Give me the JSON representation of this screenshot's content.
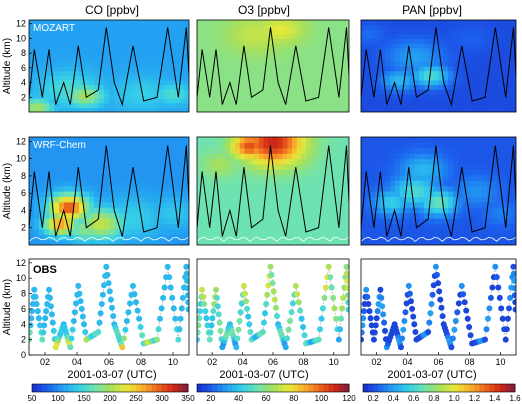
{
  "figure": {
    "column_titles": [
      "CO [ppbv]",
      "O3 [ppbv]",
      "PAN [ppbv]"
    ],
    "row_labels": [
      "MOZART",
      "WRF-Chem",
      "OBS"
    ],
    "y_axis_label": "Altitude (km)",
    "y_ticks": [
      "2",
      "4",
      "6",
      "8",
      "10",
      "12"
    ],
    "obs_y_ticks": [
      "0",
      "2",
      "4",
      "6",
      "8",
      "10",
      "12"
    ],
    "x_ticks": [
      "02",
      "04",
      "06",
      "08",
      "10"
    ],
    "x_axis_label": "2001-03-07 (UTC)",
    "colors": {
      "colormap": [
        "#1a2cc9",
        "#1c60ee",
        "#23a1f2",
        "#35d0e8",
        "#6de2b2",
        "#a6e05b",
        "#e6e83a",
        "#f7b52c",
        "#ee6a1e",
        "#d12a14",
        "#7d1b3f"
      ]
    }
  },
  "chart_data": [
    {
      "type": "heatmap",
      "title": "CO [ppbv]",
      "colorbar_ticks": [
        "50",
        "100",
        "150",
        "200",
        "250",
        "300",
        "350"
      ],
      "clim": [
        50,
        350
      ],
      "ylim": [
        0,
        12.5
      ],
      "xlim": [
        "2001-03-07 01:00",
        "2001-03-07 11:00"
      ],
      "rows": [
        "MOZART",
        "WRF-Chem",
        "OBS"
      ],
      "flight_altitude_km": [
        {
          "t": "01:00",
          "z": 2
        },
        {
          "t": "01:20",
          "z": 8.5
        },
        {
          "t": "01:50",
          "z": 2
        },
        {
          "t": "02:15",
          "z": 8.5
        },
        {
          "t": "02:40",
          "z": 1
        },
        {
          "t": "03:10",
          "z": 4
        },
        {
          "t": "03:35",
          "z": 1
        },
        {
          "t": "04:05",
          "z": 9
        },
        {
          "t": "04:35",
          "z": 2
        },
        {
          "t": "05:20",
          "z": 3
        },
        {
          "t": "05:50",
          "z": 11.5
        },
        {
          "t": "06:20",
          "z": 4
        },
        {
          "t": "06:50",
          "z": 1
        },
        {
          "t": "07:30",
          "z": 9
        },
        {
          "t": "08:10",
          "z": 1.5
        },
        {
          "t": "09:00",
          "z": 2
        },
        {
          "t": "09:40",
          "z": 11.5
        },
        {
          "t": "10:20",
          "z": 2
        },
        {
          "t": "10:50",
          "z": 11.5
        },
        {
          "t": "11:00",
          "z": 5
        }
      ]
    },
    {
      "type": "heatmap",
      "title": "O3 [ppbv]",
      "colorbar_ticks": [
        "20",
        "40",
        "60",
        "80",
        "100",
        "120"
      ],
      "clim": [
        10,
        120
      ],
      "ylim": [
        0,
        12.5
      ],
      "xlim": [
        "2001-03-07 01:00",
        "2001-03-07 11:00"
      ],
      "rows": [
        "MOZART",
        "WRF-Chem",
        "OBS"
      ]
    },
    {
      "type": "heatmap",
      "title": "PAN [ppbv]",
      "colorbar_ticks": [
        "0.2",
        "0.4",
        "0.6",
        "0.8",
        "1.0",
        "1.2",
        "1.4",
        "1.6"
      ],
      "clim": [
        0.1,
        1.6
      ],
      "ylim": [
        0,
        12.5
      ],
      "xlim": [
        "2001-03-07 01:00",
        "2001-03-07 11:00"
      ],
      "rows": [
        "MOZART",
        "WRF-Chem",
        "OBS"
      ]
    }
  ]
}
